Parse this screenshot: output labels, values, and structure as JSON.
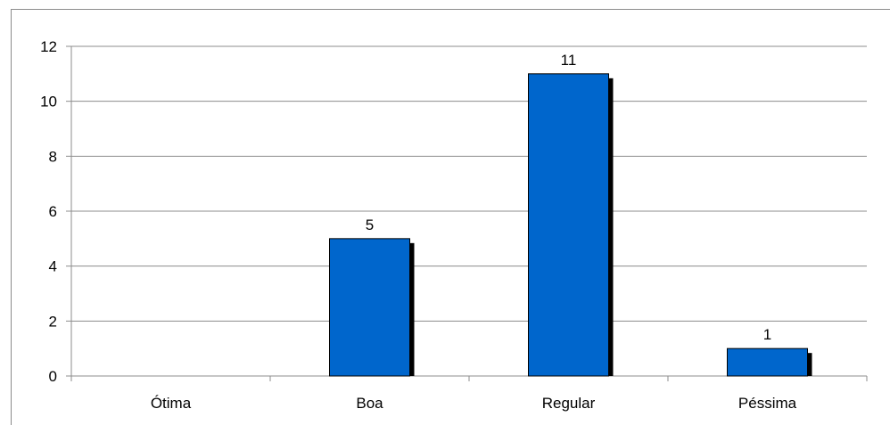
{
  "chart_data": {
    "type": "bar",
    "categories": [
      "Ótima",
      "Boa",
      "Regular",
      "Péssima"
    ],
    "values": [
      0,
      5,
      11,
      1
    ],
    "data_labels": [
      "",
      "5",
      "11",
      "1"
    ],
    "y_ticks": [
      "0",
      "2",
      "4",
      "6",
      "8",
      "10",
      "12"
    ],
    "ylim": [
      0,
      12
    ],
    "grid": true,
    "legend": "none",
    "bar_color": "#0066CC",
    "shadow_color": "#000000",
    "gridline_color": "#8c8c8c"
  }
}
